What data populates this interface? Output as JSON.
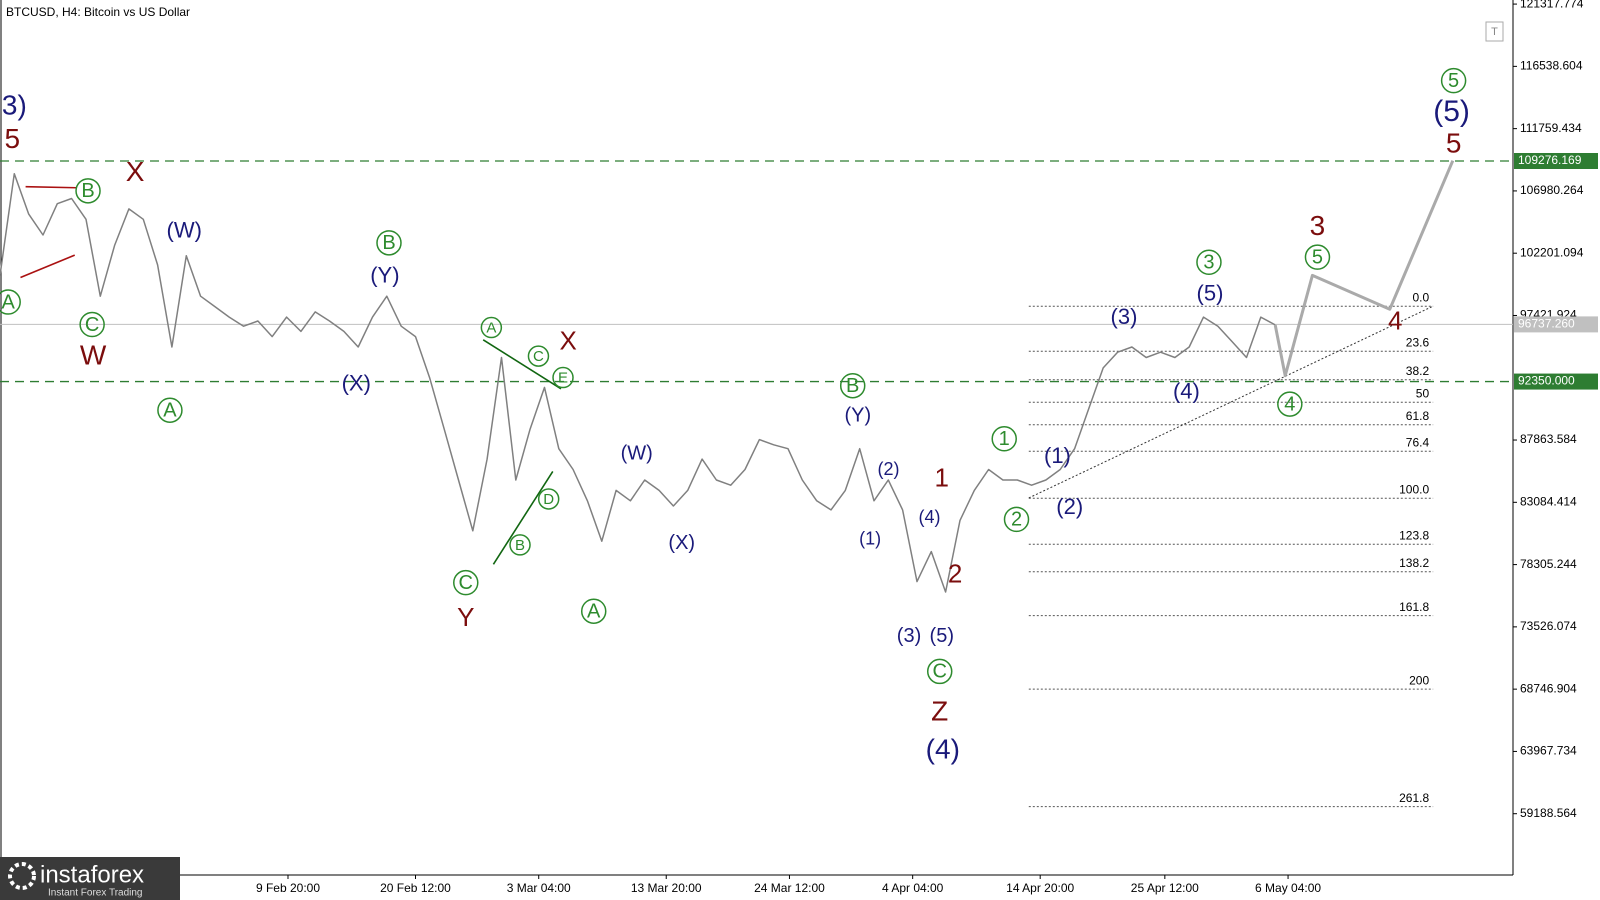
{
  "header": {
    "title": "BTCUSD, H4:  Bitcoin vs US Dollar"
  },
  "logo": {
    "name": "instaforex",
    "tagline": "Instant Forex Trading"
  },
  "button": "T",
  "chart_data": {
    "type": "line",
    "series": [
      {
        "color": "#808080",
        "x": [
          0,
          1,
          2,
          3,
          4,
          5,
          6,
          7,
          8,
          9,
          10,
          11,
          12,
          13,
          14,
          15,
          16,
          17,
          18,
          19,
          20,
          21,
          22,
          23,
          24,
          25,
          26,
          27,
          28,
          29,
          30,
          31,
          32,
          33,
          34,
          35,
          36,
          37,
          38,
          39,
          40,
          41,
          42,
          43,
          44,
          45,
          46,
          47,
          48,
          49,
          50,
          51,
          52,
          53,
          54,
          55,
          56,
          57,
          58,
          59,
          60,
          61,
          62,
          63,
          64,
          65,
          66,
          67,
          68,
          69,
          70,
          71,
          72,
          73,
          74,
          75,
          76,
          77,
          78,
          79,
          80,
          81,
          82,
          83,
          84,
          85,
          86,
          87,
          88,
          89
        ],
        "values": [
          100500,
          108300,
          105200,
          103600,
          106000,
          106400,
          104800,
          98900,
          102800,
          105600,
          104800,
          101300,
          95000,
          102000,
          98900,
          98100,
          97300,
          96600,
          97000,
          95800,
          97300,
          96200,
          97700,
          97000,
          96200,
          95000,
          97300,
          98900,
          96600,
          95800,
          92600,
          88700,
          84800,
          80900,
          86400,
          94200,
          84800,
          88700,
          91900,
          87200,
          85600,
          83200,
          80100,
          84000,
          83200,
          84800,
          84000,
          82800,
          84000,
          86400,
          84800,
          84400,
          85600,
          87900,
          87500,
          87200,
          84800,
          83200,
          82500,
          84000,
          87200,
          83200,
          84800,
          82500,
          77000,
          79300,
          76200,
          81700,
          84000,
          85600,
          84800,
          84800,
          84400,
          84800,
          85600,
          87200,
          90300,
          93400,
          94600,
          95000,
          94200,
          94600,
          94200,
          95000,
          97300,
          96600,
          95400,
          94200,
          97300,
          96700
        ]
      },
      {
        "color": "#aaaaaa",
        "x": [
          89,
          89.7,
          91.6,
          97,
          101.4
        ],
        "values": [
          96700,
          92800,
          100500,
          97900,
          109300
        ]
      }
    ],
    "xlim": [
      0,
      105.6
    ],
    "xticks": [
      {
        "value": 20.1,
        "label": "9 Feb 20:00"
      },
      {
        "value": 29,
        "label": "20 Feb 12:00"
      },
      {
        "value": 37.6,
        "label": "3 Mar 04:00"
      },
      {
        "value": 46.5,
        "label": "13 Mar 20:00"
      },
      {
        "value": 55.1,
        "label": "24 Mar 12:00"
      },
      {
        "value": 63.7,
        "label": "4 Apr 04:00"
      },
      {
        "value": 72.6,
        "label": "14 Apr 20:00"
      },
      {
        "value": 81.3,
        "label": "25 Apr 12:00"
      },
      {
        "value": 89.9,
        "label": "6 May 04:00"
      }
    ],
    "ylim": [
      54485,
      121631
    ],
    "yticks": [
      121317.774,
      116538.604,
      111759.434,
      106980.264,
      102201.094,
      97421.924,
      87863.584,
      83084.414,
      78305.244,
      73526.074,
      68746.904,
      63967.734,
      59188.564
    ],
    "levels": [
      {
        "value": 109276.169,
        "label": "109276.169",
        "color": "#2e7d32"
      },
      {
        "value": 92350,
        "label": "92350.000",
        "color": "#2e7d32"
      },
      {
        "value": 96737.26,
        "label": "96737.260",
        "color": "#c0c0c0"
      }
    ],
    "fibonacci": [
      {
        "label": "0.0",
        "value": 98126
      },
      {
        "label": "23.6",
        "value": 94678
      },
      {
        "label": "38.2",
        "value": 92485
      },
      {
        "label": "50",
        "value": 90762
      },
      {
        "label": "61.8",
        "value": 89038
      },
      {
        "label": "76.4",
        "value": 87000
      },
      {
        "label": "100.0",
        "value": 83396
      },
      {
        "label": "123.8",
        "value": 79870
      },
      {
        "label": "138.2",
        "value": 77755
      },
      {
        "label": "161.8",
        "value": 74386
      },
      {
        "label": "200",
        "value": 68745
      },
      {
        "label": "261.8",
        "value": 59735
      }
    ],
    "wave_labels": [
      {
        "text": "3)",
        "color": "#1a1a7a"
      },
      {
        "text": "5",
        "color": "#7b0d0d"
      },
      {
        "text": "A",
        "color": "#2e8b2e",
        "circled": true
      },
      {
        "text": "B",
        "color": "#2e8b2e",
        "circled": true
      },
      {
        "text": "C",
        "color": "#2e8b2e",
        "circled": true
      },
      {
        "text": "W",
        "color": "#7b0d0d"
      },
      {
        "text": "X",
        "color": "#7b0d0d"
      },
      {
        "text": "(W)",
        "color": "#1a1a7a"
      },
      {
        "text": "A",
        "color": "#2e8b2e",
        "circled": true
      },
      {
        "text": "B",
        "color": "#2e8b2e",
        "circled": true
      },
      {
        "text": "(Y)",
        "color": "#1a1a7a"
      },
      {
        "text": "(X)",
        "color": "#1a1a7a"
      },
      {
        "text": "A",
        "color": "#2e8b2e",
        "circled": true
      },
      {
        "text": "C",
        "color": "#2e8b2e",
        "circled": true
      },
      {
        "text": "E",
        "color": "#2e8b2e",
        "circled": true
      },
      {
        "text": "X",
        "color": "#7b0d0d"
      },
      {
        "text": "D",
        "color": "#2e8b2e",
        "circled": true
      },
      {
        "text": "B",
        "color": "#2e8b2e",
        "circled": true
      },
      {
        "text": "C",
        "color": "#2e8b2e",
        "circled": true
      },
      {
        "text": "Y",
        "color": "#7b0d0d"
      },
      {
        "text": "A",
        "color": "#2e8b2e",
        "circled": true
      },
      {
        "text": "(W)",
        "color": "#1a1a7a"
      },
      {
        "text": "(X)",
        "color": "#1a1a7a"
      },
      {
        "text": "B",
        "color": "#2e8b2e",
        "circled": true
      },
      {
        "text": "(Y)",
        "color": "#1a1a7a"
      },
      {
        "text": "(2)",
        "color": "#1a1a7a"
      },
      {
        "text": "(1)",
        "color": "#1a1a7a"
      },
      {
        "text": "(4)",
        "color": "#1a1a7a"
      },
      {
        "text": "1",
        "color": "#7b0d0d"
      },
      {
        "text": "2",
        "color": "#7b0d0d"
      },
      {
        "text": "(3)",
        "color": "#1a1a7a"
      },
      {
        "text": "(5)",
        "color": "#1a1a7a"
      },
      {
        "text": "C",
        "color": "#2e8b2e",
        "circled": true
      },
      {
        "text": "Z",
        "color": "#7b0d0d"
      },
      {
        "text": "(4)",
        "color": "#1a1a7a"
      },
      {
        "text": "1",
        "color": "#2e8b2e",
        "circled": true
      },
      {
        "text": "2",
        "color": "#2e8b2e",
        "circled": true
      },
      {
        "text": "(1)",
        "color": "#1a1a7a"
      },
      {
        "text": "(2)",
        "color": "#1a1a7a"
      },
      {
        "text": "(3)",
        "color": "#1a1a7a"
      },
      {
        "text": "3",
        "color": "#2e8b2e",
        "circled": true
      },
      {
        "text": "(5)",
        "color": "#1a1a7a"
      },
      {
        "text": "(4)",
        "color": "#1a1a7a"
      },
      {
        "text": "4",
        "color": "#2e8b2e",
        "circled": true
      },
      {
        "text": "3",
        "color": "#7b0d0d"
      },
      {
        "text": "5",
        "color": "#2e8b2e",
        "circled": true
      },
      {
        "text": "4",
        "color": "#7b0d0d"
      },
      {
        "text": "5",
        "color": "#2e8b2e",
        "circled": true
      },
      {
        "text": "(5)",
        "color": "#1a1a7a"
      },
      {
        "text": "5",
        "color": "#7b0d0d"
      }
    ]
  }
}
